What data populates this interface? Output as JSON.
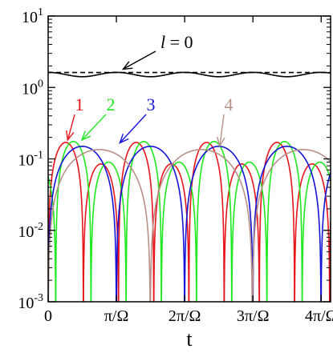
{
  "chart_data": {
    "type": "line",
    "xlabel": "t",
    "ylabel": "",
    "title": "",
    "xlim": [
      0,
      13.0
    ],
    "ylim": [
      0.001,
      10
    ],
    "log_y": true,
    "x_ticks": [
      {
        "value": 0,
        "label": "0"
      },
      {
        "value": 3.1416,
        "label": "π/Ω"
      },
      {
        "value": 6.2832,
        "label": "2π/Ω"
      },
      {
        "value": 9.4248,
        "label": "3π/Ω"
      },
      {
        "value": 12.5664,
        "label": "4π/Ω"
      }
    ],
    "y_ticks": [
      {
        "value": 0.001,
        "base": "10",
        "exp": "-3"
      },
      {
        "value": 0.01,
        "base": "10",
        "exp": "-2"
      },
      {
        "value": 0.1,
        "base": "10",
        "exp": "-1"
      },
      {
        "value": 1,
        "base": "10",
        "exp": "0"
      },
      {
        "value": 10,
        "base": "10",
        "exp": "1"
      }
    ],
    "series": [
      {
        "label": "l = 0",
        "label_italic": "l",
        "label_rest": " = 0",
        "color": "#000000",
        "style": "solid",
        "mean": 1.52,
        "ripple": 0.07,
        "period": 3.1416
      },
      {
        "label": "l = 0",
        "color": "#000000",
        "style": "dashed",
        "value": 1.62
      },
      {
        "label": "1",
        "color": "#e8141c",
        "amplitude": 0.17,
        "dip_amplitude": 0.085,
        "zero_spacing": 1.62,
        "phase": 0.0,
        "annotation_point": [
          0.9,
          0.17
        ]
      },
      {
        "label": "2",
        "color": "#1ee81e",
        "amplitude": 0.175,
        "dip_amplitude": 0.09,
        "zero_spacing": 1.62,
        "phase": 0.35,
        "annotation_point": [
          1.55,
          0.17
        ]
      },
      {
        "label": "3",
        "color": "#1414d8",
        "amplitude": 0.15,
        "dip_amplitude": 0.15,
        "zero_spacing": 3.14,
        "phase": 0.0,
        "annotation_point": [
          3.3,
          0.155
        ]
      },
      {
        "label": "4",
        "color": "#b89088",
        "amplitude": 0.135,
        "dip_amplitude": 0.135,
        "zero_spacing": 4.7,
        "phase": 0.0,
        "annotation_point": [
          7.9,
          0.14
        ]
      }
    ],
    "grid": false,
    "legend": "none"
  }
}
